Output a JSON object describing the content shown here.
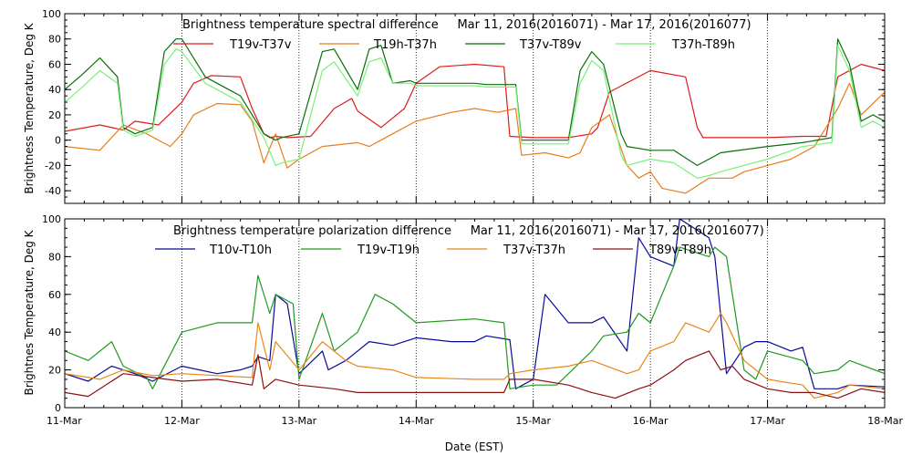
{
  "chart_data": [
    {
      "type": "line",
      "title": "Brightness temperature spectral difference     Mar 11, 2016(2016071) - Mar 17, 2016(2016077)",
      "ylabel": "Brightness Temperature, Deg K",
      "xlabel": "",
      "xlim": [
        0,
        7
      ],
      "ylim": [
        -50,
        100
      ],
      "yticks": [
        -40,
        -20,
        0,
        20,
        40,
        60,
        80,
        100
      ],
      "ytick_labels": [
        "-40",
        "-20",
        "0",
        "20",
        "40",
        "60",
        "80",
        "100"
      ],
      "grid": "dotted vertical lines at each day",
      "series": [
        {
          "name": "T19v-T37v",
          "color": "#dd1c1c",
          "x": [
            0,
            0.3,
            0.5,
            0.6,
            0.8,
            1.0,
            1.1,
            1.25,
            1.5,
            1.6,
            1.7,
            1.75,
            1.8,
            1.9,
            2.1,
            2.3,
            2.45,
            2.5,
            2.7,
            2.9,
            3.0,
            3.2,
            3.5,
            3.75,
            3.8,
            4.0,
            4.3,
            4.5,
            4.55,
            4.65,
            5.0,
            5.3,
            5.4,
            5.45,
            5.6,
            6.0,
            6.3,
            6.5,
            6.6,
            6.8,
            7.0
          ],
          "y": [
            7,
            12,
            8,
            15,
            12,
            30,
            45,
            51,
            50,
            25,
            5,
            2,
            3,
            2,
            3,
            25,
            33,
            23,
            10,
            25,
            45,
            58,
            60,
            58,
            3,
            2,
            2,
            5,
            10,
            38,
            55,
            50,
            10,
            2,
            2,
            2,
            3,
            3,
            50,
            60,
            55
          ]
        },
        {
          "name": "T19h-T37h",
          "color": "#e87d19",
          "x": [
            0,
            0.3,
            0.5,
            0.7,
            0.9,
            1.0,
            1.1,
            1.3,
            1.5,
            1.6,
            1.7,
            1.8,
            1.9,
            2.0,
            2.2,
            2.5,
            2.6,
            2.8,
            3.0,
            3.3,
            3.5,
            3.7,
            3.85,
            3.9,
            4.1,
            4.3,
            4.4,
            4.5,
            4.65,
            4.8,
            4.9,
            5.0,
            5.1,
            5.3,
            5.5,
            5.7,
            5.8,
            6.0,
            6.2,
            6.4,
            6.6,
            6.7,
            6.8,
            7.0
          ],
          "y": [
            -5,
            -8,
            12,
            5,
            -5,
            5,
            20,
            29,
            28,
            15,
            -18,
            5,
            -22,
            -15,
            -5,
            -2,
            -5,
            5,
            15,
            22,
            25,
            22,
            25,
            -12,
            -10,
            -14,
            -10,
            10,
            20,
            -20,
            -30,
            -25,
            -38,
            -42,
            -30,
            -30,
            -25,
            -20,
            -15,
            -5,
            25,
            45,
            20,
            38
          ]
        },
        {
          "name": "T37v-T89v",
          "color": "#0a6e0a",
          "x": [
            0,
            0.15,
            0.3,
            0.45,
            0.5,
            0.6,
            0.75,
            0.85,
            0.95,
            1.0,
            1.2,
            1.4,
            1.5,
            1.7,
            1.8,
            1.85,
            2.0,
            2.2,
            2.3,
            2.5,
            2.6,
            2.7,
            2.8,
            2.95,
            3.0,
            3.5,
            3.6,
            3.85,
            3.9,
            4.1,
            4.3,
            4.4,
            4.5,
            4.6,
            4.75,
            4.8,
            5.0,
            5.2,
            5.4,
            5.5,
            5.6,
            6.0,
            6.3,
            6.55,
            6.6,
            6.7,
            6.8,
            6.9,
            7.0
          ],
          "y": [
            40,
            52,
            65,
            50,
            10,
            5,
            10,
            70,
            80,
            80,
            50,
            40,
            35,
            5,
            0,
            2,
            5,
            70,
            72,
            40,
            72,
            75,
            45,
            47,
            45,
            45,
            44,
            44,
            0,
            0,
            0,
            55,
            70,
            60,
            5,
            -5,
            -8,
            -8,
            -20,
            -15,
            -10,
            -5,
            -2,
            2,
            80,
            60,
            15,
            20,
            15
          ]
        },
        {
          "name": "T37h-T89h",
          "color": "#7af07a",
          "x": [
            0,
            0.15,
            0.3,
            0.45,
            0.5,
            0.6,
            0.75,
            0.85,
            0.95,
            1.0,
            1.2,
            1.4,
            1.5,
            1.7,
            1.8,
            1.85,
            2.0,
            2.2,
            2.3,
            2.5,
            2.6,
            2.7,
            2.8,
            2.95,
            3.0,
            3.5,
            3.6,
            3.85,
            3.9,
            4.1,
            4.3,
            4.4,
            4.5,
            4.6,
            4.75,
            4.8,
            5.0,
            5.2,
            5.4,
            5.5,
            5.6,
            6.0,
            6.3,
            6.55,
            6.6,
            6.7,
            6.8,
            6.9,
            7.0
          ],
          "y": [
            30,
            42,
            55,
            45,
            8,
            3,
            8,
            60,
            72,
            70,
            45,
            35,
            30,
            2,
            -20,
            -18,
            -15,
            55,
            62,
            35,
            62,
            65,
            45,
            45,
            43,
            43,
            42,
            42,
            -3,
            -3,
            -3,
            45,
            63,
            55,
            -12,
            -20,
            -15,
            -18,
            -30,
            -28,
            -25,
            -15,
            -5,
            -2,
            75,
            55,
            10,
            15,
            10
          ]
        }
      ]
    },
    {
      "type": "line",
      "title": "Brightness temperature polarization difference     Mar 11, 2016(2016071) - Mar 17, 2016(2016077)",
      "ylabel": "Brightnes Temperature, Deg K",
      "xlabel": "Date (EST)",
      "xlim": [
        0,
        7
      ],
      "ylim": [
        0,
        100
      ],
      "xtick_labels": [
        "11-Mar",
        "12-Mar",
        "13-Mar",
        "14-Mar",
        "15-Mar",
        "16-Mar",
        "17-Mar",
        "18-Mar"
      ],
      "yticks": [
        0,
        20,
        40,
        60,
        80,
        100
      ],
      "ytick_labels": [
        "0",
        "20",
        "40",
        "60",
        "80",
        "100"
      ],
      "grid": "dotted vertical lines at each day",
      "series": [
        {
          "name": "T10v-T10h",
          "color": "#0a0a99",
          "x": [
            0,
            0.2,
            0.4,
            0.6,
            0.75,
            1.0,
            1.3,
            1.5,
            1.6,
            1.65,
            1.75,
            1.8,
            1.9,
            2.0,
            2.2,
            2.25,
            2.4,
            2.6,
            2.8,
            3.0,
            3.3,
            3.5,
            3.6,
            3.8,
            3.85,
            4.0,
            4.1,
            4.3,
            4.5,
            4.6,
            4.8,
            4.9,
            5.0,
            5.2,
            5.25,
            5.5,
            5.55,
            5.65,
            5.8,
            5.9,
            6.0,
            6.2,
            6.3,
            6.4,
            6.6,
            6.7,
            7.0
          ],
          "y": [
            18,
            14,
            22,
            18,
            14,
            22,
            18,
            20,
            22,
            27,
            25,
            60,
            55,
            18,
            30,
            20,
            25,
            35,
            33,
            37,
            35,
            35,
            38,
            36,
            10,
            15,
            60,
            45,
            45,
            48,
            30,
            90,
            80,
            75,
            100,
            90,
            80,
            18,
            32,
            35,
            35,
            30,
            32,
            10,
            10,
            12,
            11
          ]
        },
        {
          "name": "T19v-T19h",
          "color": "#1f9a1f",
          "x": [
            0,
            0.2,
            0.4,
            0.5,
            0.7,
            0.75,
            1.0,
            1.3,
            1.6,
            1.65,
            1.75,
            1.8,
            1.95,
            2.0,
            2.2,
            2.3,
            2.5,
            2.65,
            2.8,
            3.0,
            3.5,
            3.75,
            3.8,
            4.0,
            4.2,
            4.5,
            4.6,
            4.8,
            4.9,
            5.0,
            5.2,
            5.25,
            5.5,
            5.55,
            5.65,
            5.8,
            5.9,
            6.0,
            6.3,
            6.4,
            6.6,
            6.7,
            7.0
          ],
          "y": [
            30,
            25,
            35,
            22,
            16,
            10,
            40,
            45,
            45,
            70,
            50,
            60,
            55,
            15,
            50,
            30,
            40,
            60,
            55,
            45,
            47,
            45,
            10,
            12,
            12,
            30,
            38,
            40,
            50,
            45,
            75,
            85,
            80,
            85,
            80,
            20,
            15,
            30,
            25,
            18,
            20,
            25,
            18
          ]
        },
        {
          "name": "T37v-T37h",
          "color": "#e88818",
          "x": [
            0,
            0.3,
            0.5,
            0.75,
            1.0,
            1.3,
            1.6,
            1.65,
            1.75,
            1.8,
            2.0,
            2.2,
            2.4,
            2.5,
            2.8,
            3.0,
            3.5,
            3.75,
            3.8,
            4.0,
            4.3,
            4.5,
            4.8,
            4.9,
            5.0,
            5.2,
            5.3,
            5.5,
            5.6,
            5.65,
            5.8,
            6.0,
            6.3,
            6.4,
            6.6,
            6.7,
            7.0
          ],
          "y": [
            18,
            15,
            20,
            17,
            18,
            17,
            16,
            45,
            20,
            35,
            20,
            35,
            25,
            22,
            20,
            16,
            15,
            15,
            18,
            20,
            22,
            25,
            18,
            20,
            30,
            35,
            45,
            40,
            50,
            45,
            25,
            15,
            12,
            5,
            8,
            12,
            10
          ]
        },
        {
          "name": "T89v-T89h",
          "color": "#8b1010",
          "x": [
            0,
            0.2,
            0.4,
            0.5,
            0.75,
            1.0,
            1.3,
            1.6,
            1.65,
            1.7,
            1.8,
            2.0,
            2.3,
            2.5,
            2.8,
            3.0,
            3.5,
            3.75,
            3.8,
            4.0,
            4.3,
            4.5,
            4.7,
            4.9,
            5.0,
            5.2,
            5.3,
            5.5,
            5.6,
            5.7,
            5.8,
            6.0,
            6.2,
            6.4,
            6.6,
            6.8,
            7.0
          ],
          "y": [
            8,
            6,
            14,
            18,
            16,
            14,
            15,
            12,
            28,
            10,
            15,
            12,
            10,
            8,
            8,
            8,
            8,
            8,
            15,
            15,
            12,
            8,
            5,
            10,
            12,
            20,
            25,
            30,
            20,
            22,
            15,
            10,
            8,
            8,
            5,
            10,
            8
          ]
        }
      ]
    }
  ]
}
